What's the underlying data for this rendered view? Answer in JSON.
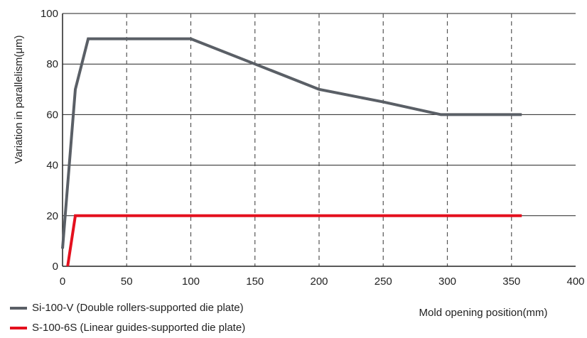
{
  "chart_data": {
    "type": "line",
    "xlabel": "Mold opening position(mm)",
    "ylabel": "Variation in parallelism(μm)",
    "xlim": [
      0,
      400
    ],
    "ylim": [
      0,
      100
    ],
    "x_ticks": [
      0,
      50,
      100,
      150,
      200,
      250,
      300,
      350,
      400
    ],
    "y_ticks": [
      0,
      20,
      40,
      60,
      80,
      100
    ],
    "x_tick_labels": [
      "0",
      "50",
      "100",
      "150",
      "200",
      "250",
      "300",
      "350",
      "400"
    ],
    "y_tick_labels": [
      "0",
      "20",
      "40",
      "60",
      "80",
      "100"
    ],
    "grid": {
      "horizontal": "solid",
      "vertical": "dashed"
    },
    "legend_position": "bottom-left",
    "series": [
      {
        "name": "Si-100-V (Double rollers-supported die plate)",
        "color": "#5a5f66",
        "points": [
          [
            0,
            7
          ],
          [
            10,
            70
          ],
          [
            20,
            90
          ],
          [
            100,
            90
          ],
          [
            150,
            80
          ],
          [
            200,
            70
          ],
          [
            250,
            65
          ],
          [
            295,
            60
          ],
          [
            358,
            60
          ]
        ]
      },
      {
        "name": "S-100-6S (Linear guides-supported die plate)",
        "color": "#e4101e",
        "points": [
          [
            4,
            0
          ],
          [
            10,
            20
          ],
          [
            358,
            20
          ]
        ]
      }
    ]
  }
}
